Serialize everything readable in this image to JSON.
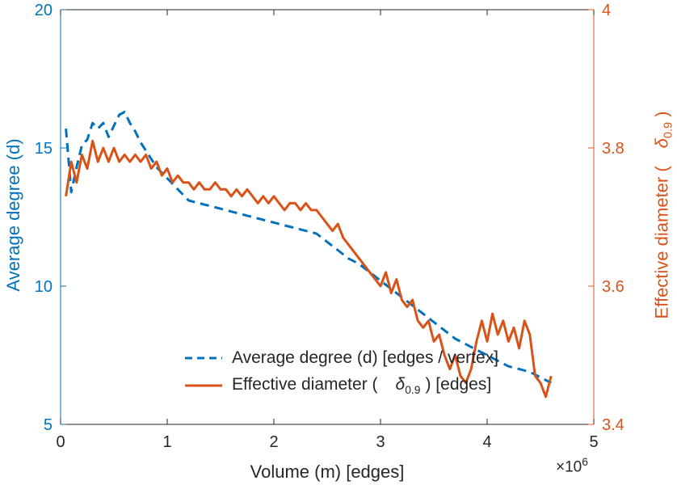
{
  "figure": {
    "background": "#ffffff",
    "neutral_text_color": "#262626"
  },
  "chart_data": {
    "type": "line",
    "title": "",
    "xlabel": "Volume (m) [edges]",
    "x_exponent": {
      "base": "×10",
      "exp": "6"
    },
    "x_unit_multiplier": 1000000,
    "xlim": [
      0,
      5
    ],
    "xticks": [
      0,
      1,
      2,
      3,
      4,
      5
    ],
    "grid": false,
    "left_axis": {
      "label": "Average degree (d)",
      "lim": [
        5,
        20
      ],
      "ticks": [
        5,
        10,
        15,
        20
      ],
      "color": "#0072BD"
    },
    "right_axis": {
      "label_prefix": "Effective diameter (",
      "symbol": "δ",
      "sub": "0.9",
      "suffix": ")",
      "lim": [
        3.4,
        4
      ],
      "ticks": [
        "3.4",
        "3.6",
        "3.8",
        "4"
      ],
      "color": "#D95319"
    },
    "legend": {
      "position": "south-inside",
      "frame": false,
      "items": [
        {
          "label": "Average degree (d) [edges / vertex]",
          "line": "dashed",
          "color": "#0072BD"
        },
        {
          "label_prefix": "Effective diameter (",
          "symbol": "δ",
          "sub": "0.9",
          "suffix": ") [edges]",
          "line": "solid",
          "color": "#D95319"
        }
      ]
    },
    "series": [
      {
        "name": "Average degree (d) [edges / vertex]",
        "axis": "left",
        "color": "#0072BD",
        "style": "dashed",
        "x": [
          0.05,
          0.1,
          0.15,
          0.2,
          0.25,
          0.3,
          0.35,
          0.4,
          0.45,
          0.5,
          0.55,
          0.6,
          0.65,
          0.7,
          0.75,
          0.8,
          0.85,
          0.9,
          0.95,
          1.0,
          1.05,
          1.1,
          1.15,
          1.2,
          1.3,
          1.4,
          1.5,
          1.6,
          1.7,
          1.8,
          1.9,
          2.0,
          2.1,
          2.2,
          2.3,
          2.4,
          2.5,
          2.6,
          2.7,
          2.8,
          2.9,
          3.0,
          3.1,
          3.2,
          3.3,
          3.4,
          3.5,
          3.6,
          3.7,
          3.8,
          3.9,
          4.0,
          4.1,
          4.2,
          4.3,
          4.4,
          4.5,
          4.6
        ],
        "y": [
          15.7,
          13.4,
          14.3,
          15.1,
          15.3,
          15.9,
          15.7,
          15.9,
          15.4,
          15.8,
          16.2,
          16.3,
          15.9,
          15.6,
          15.2,
          14.9,
          14.6,
          14.3,
          14.1,
          13.9,
          13.7,
          13.5,
          13.3,
          13.1,
          13.0,
          12.9,
          12.8,
          12.7,
          12.6,
          12.5,
          12.4,
          12.3,
          12.2,
          12.1,
          12.0,
          11.9,
          11.6,
          11.3,
          11.0,
          10.8,
          10.5,
          10.2,
          9.9,
          9.6,
          9.3,
          9.0,
          8.7,
          8.4,
          8.1,
          7.9,
          7.7,
          7.5,
          7.3,
          7.1,
          7.0,
          6.9,
          6.7,
          6.5
        ]
      },
      {
        "name": "Effective diameter ( δ_0.9 ) [edges]",
        "axis": "right",
        "color": "#D95319",
        "style": "solid",
        "x": [
          0.05,
          0.1,
          0.15,
          0.2,
          0.25,
          0.3,
          0.35,
          0.4,
          0.45,
          0.5,
          0.55,
          0.6,
          0.65,
          0.7,
          0.75,
          0.8,
          0.85,
          0.9,
          0.95,
          1.0,
          1.05,
          1.1,
          1.15,
          1.2,
          1.25,
          1.3,
          1.35,
          1.4,
          1.45,
          1.5,
          1.55,
          1.6,
          1.65,
          1.7,
          1.75,
          1.8,
          1.85,
          1.9,
          1.95,
          2.0,
          2.05,
          2.1,
          2.15,
          2.2,
          2.25,
          2.3,
          2.35,
          2.4,
          2.45,
          2.5,
          2.55,
          2.6,
          2.65,
          2.7,
          2.75,
          2.8,
          2.85,
          2.9,
          2.95,
          3.0,
          3.05,
          3.1,
          3.15,
          3.2,
          3.25,
          3.3,
          3.35,
          3.4,
          3.45,
          3.5,
          3.55,
          3.6,
          3.65,
          3.7,
          3.75,
          3.8,
          3.85,
          3.9,
          3.95,
          4.0,
          4.05,
          4.1,
          4.15,
          4.2,
          4.25,
          4.3,
          4.35,
          4.4,
          4.45,
          4.5,
          4.55,
          4.6
        ],
        "y": [
          3.73,
          3.78,
          3.75,
          3.79,
          3.77,
          3.81,
          3.78,
          3.8,
          3.78,
          3.8,
          3.78,
          3.79,
          3.78,
          3.79,
          3.78,
          3.79,
          3.77,
          3.78,
          3.76,
          3.77,
          3.75,
          3.76,
          3.75,
          3.75,
          3.74,
          3.75,
          3.74,
          3.74,
          3.75,
          3.74,
          3.74,
          3.73,
          3.74,
          3.73,
          3.74,
          3.73,
          3.72,
          3.73,
          3.72,
          3.73,
          3.72,
          3.71,
          3.72,
          3.72,
          3.71,
          3.72,
          3.71,
          3.71,
          3.7,
          3.69,
          3.68,
          3.69,
          3.67,
          3.66,
          3.65,
          3.64,
          3.63,
          3.62,
          3.61,
          3.6,
          3.62,
          3.59,
          3.61,
          3.58,
          3.57,
          3.58,
          3.55,
          3.54,
          3.55,
          3.52,
          3.53,
          3.5,
          3.48,
          3.5,
          3.47,
          3.46,
          3.48,
          3.52,
          3.55,
          3.52,
          3.56,
          3.53,
          3.55,
          3.52,
          3.54,
          3.51,
          3.55,
          3.53,
          3.47,
          3.46,
          3.44,
          3.47
        ]
      }
    ]
  }
}
